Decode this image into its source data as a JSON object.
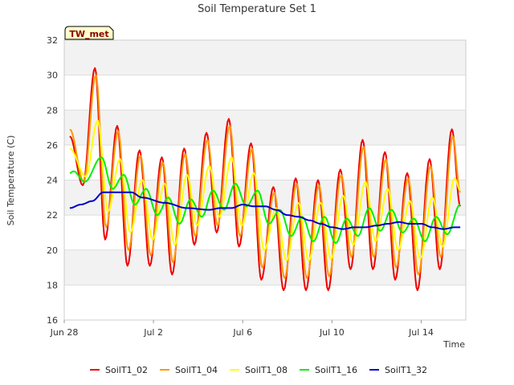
{
  "chart_data": {
    "type": "line",
    "title": "Soil Temperature Set 1",
    "xlabel": "Time",
    "ylabel": "Soil Temperature (C)",
    "badge": "TW_met",
    "x_range": [
      "2016-06-28",
      "2016-07-16"
    ],
    "ylim": [
      16,
      32
    ],
    "y_ticks": [
      16,
      18,
      20,
      22,
      24,
      26,
      28,
      30,
      32
    ],
    "x_ticks": [
      {
        "date": "2016-06-28",
        "label": "Jun 28"
      },
      {
        "date": "2016-07-02",
        "label": "Jul 2"
      },
      {
        "date": "2016-07-06",
        "label": "Jul 6"
      },
      {
        "date": "2016-07-10",
        "label": "Jul 10"
      },
      {
        "date": "2016-07-14",
        "label": "Jul 14"
      }
    ],
    "grid": true,
    "legend_position": "bottom",
    "series": [
      {
        "name": "SoilT1_02",
        "color": "#ee0000",
        "points": [
          [
            "2016-06-28T06:00",
            26.5
          ],
          [
            "2016-06-28T20:00",
            23.7
          ],
          [
            "2016-06-29T09:00",
            30.4
          ],
          [
            "2016-06-29T20:00",
            20.6
          ],
          [
            "2016-06-30T09:00",
            27.1
          ],
          [
            "2016-06-30T20:00",
            19.1
          ],
          [
            "2016-07-01T09:00",
            25.7
          ],
          [
            "2016-07-01T20:00",
            19.1
          ],
          [
            "2016-07-02T09:00",
            25.3
          ],
          [
            "2016-07-02T20:00",
            18.6
          ],
          [
            "2016-07-03T09:00",
            25.8
          ],
          [
            "2016-07-03T20:00",
            20.3
          ],
          [
            "2016-07-04T09:00",
            26.7
          ],
          [
            "2016-07-04T20:00",
            21.0
          ],
          [
            "2016-07-05T09:00",
            27.5
          ],
          [
            "2016-07-05T20:00",
            20.2
          ],
          [
            "2016-07-06T09:00",
            26.1
          ],
          [
            "2016-07-06T20:00",
            18.3
          ],
          [
            "2016-07-07T09:00",
            23.6
          ],
          [
            "2016-07-07T20:00",
            17.7
          ],
          [
            "2016-07-08T09:00",
            24.1
          ],
          [
            "2016-07-08T20:00",
            17.7
          ],
          [
            "2016-07-09T09:00",
            24.0
          ],
          [
            "2016-07-09T20:00",
            17.7
          ],
          [
            "2016-07-10T09:00",
            24.6
          ],
          [
            "2016-07-10T20:00",
            18.9
          ],
          [
            "2016-07-11T09:00",
            26.3
          ],
          [
            "2016-07-11T20:00",
            18.9
          ],
          [
            "2016-07-12T09:00",
            25.6
          ],
          [
            "2016-07-12T20:00",
            18.3
          ],
          [
            "2016-07-13T09:00",
            24.4
          ],
          [
            "2016-07-13T20:00",
            17.7
          ],
          [
            "2016-07-14T09:00",
            25.2
          ],
          [
            "2016-07-14T20:00",
            18.9
          ],
          [
            "2016-07-15T09:00",
            26.9
          ],
          [
            "2016-07-15T18:00",
            22.5
          ]
        ]
      },
      {
        "name": "SoilT1_04",
        "color": "#ff9900",
        "points": [
          [
            "2016-06-28T06:00",
            26.9
          ],
          [
            "2016-06-28T21:00",
            23.9
          ],
          [
            "2016-06-29T10:00",
            30.0
          ],
          [
            "2016-06-29T21:00",
            21.3
          ],
          [
            "2016-06-30T10:00",
            26.8
          ],
          [
            "2016-06-30T21:00",
            20.0
          ],
          [
            "2016-07-01T10:00",
            25.4
          ],
          [
            "2016-07-01T21:00",
            19.7
          ],
          [
            "2016-07-02T10:00",
            25.0
          ],
          [
            "2016-07-02T21:00",
            19.3
          ],
          [
            "2016-07-03T10:00",
            25.5
          ],
          [
            "2016-07-03T21:00",
            20.8
          ],
          [
            "2016-07-04T10:00",
            26.3
          ],
          [
            "2016-07-04T21:00",
            21.4
          ],
          [
            "2016-07-05T10:00",
            27.1
          ],
          [
            "2016-07-05T21:00",
            20.8
          ],
          [
            "2016-07-06T10:00",
            25.8
          ],
          [
            "2016-07-06T21:00",
            19.0
          ],
          [
            "2016-07-07T10:00",
            23.3
          ],
          [
            "2016-07-07T21:00",
            18.4
          ],
          [
            "2016-07-08T10:00",
            23.8
          ],
          [
            "2016-07-08T21:00",
            18.4
          ],
          [
            "2016-07-09T10:00",
            23.7
          ],
          [
            "2016-07-09T21:00",
            18.5
          ],
          [
            "2016-07-10T10:00",
            24.3
          ],
          [
            "2016-07-10T21:00",
            19.6
          ],
          [
            "2016-07-11T10:00",
            25.9
          ],
          [
            "2016-07-11T21:00",
            19.6
          ],
          [
            "2016-07-12T10:00",
            25.2
          ],
          [
            "2016-07-12T21:00",
            19.0
          ],
          [
            "2016-07-13T10:00",
            24.1
          ],
          [
            "2016-07-13T21:00",
            18.6
          ],
          [
            "2016-07-14T10:00",
            24.8
          ],
          [
            "2016-07-14T21:00",
            19.6
          ],
          [
            "2016-07-15T10:00",
            26.5
          ],
          [
            "2016-07-15T18:00",
            23.3
          ]
        ]
      },
      {
        "name": "SoilT1_08",
        "color": "#ffff00",
        "points": [
          [
            "2016-06-28T06:00",
            25.8
          ],
          [
            "2016-06-28T23:00",
            24.2
          ],
          [
            "2016-06-29T12:00",
            27.4
          ],
          [
            "2016-06-29T23:00",
            22.2
          ],
          [
            "2016-06-30T12:00",
            25.2
          ],
          [
            "2016-06-30T23:00",
            21.0
          ],
          [
            "2016-07-01T12:00",
            24.0
          ],
          [
            "2016-07-01T23:00",
            20.6
          ],
          [
            "2016-07-02T12:00",
            23.8
          ],
          [
            "2016-07-02T23:00",
            20.3
          ],
          [
            "2016-07-03T12:00",
            24.3
          ],
          [
            "2016-07-03T23:00",
            21.4
          ],
          [
            "2016-07-04T12:00",
            24.8
          ],
          [
            "2016-07-04T23:00",
            21.9
          ],
          [
            "2016-07-05T12:00",
            25.3
          ],
          [
            "2016-07-05T23:00",
            21.4
          ],
          [
            "2016-07-06T12:00",
            24.4
          ],
          [
            "2016-07-06T23:00",
            20.0
          ],
          [
            "2016-07-07T12:00",
            22.4
          ],
          [
            "2016-07-07T23:00",
            19.4
          ],
          [
            "2016-07-08T12:00",
            22.7
          ],
          [
            "2016-07-08T23:00",
            19.4
          ],
          [
            "2016-07-09T12:00",
            22.7
          ],
          [
            "2016-07-09T23:00",
            19.5
          ],
          [
            "2016-07-10T12:00",
            23.1
          ],
          [
            "2016-07-10T23:00",
            20.3
          ],
          [
            "2016-07-11T12:00",
            23.9
          ],
          [
            "2016-07-11T23:00",
            20.5
          ],
          [
            "2016-07-12T12:00",
            23.5
          ],
          [
            "2016-07-12T23:00",
            20.0
          ],
          [
            "2016-07-13T12:00",
            22.8
          ],
          [
            "2016-07-13T23:00",
            19.5
          ],
          [
            "2016-07-14T12:00",
            23.0
          ],
          [
            "2016-07-14T23:00",
            20.2
          ],
          [
            "2016-07-15T12:00",
            24.1
          ],
          [
            "2016-07-15T18:00",
            23.4
          ]
        ]
      },
      {
        "name": "SoilT1_16",
        "color": "#00ee00",
        "points": [
          [
            "2016-06-28T06:00",
            24.4
          ],
          [
            "2016-06-28T10:00",
            24.5
          ],
          [
            "2016-06-28T22:00",
            23.9
          ],
          [
            "2016-06-29T16:00",
            25.3
          ],
          [
            "2016-06-30T04:00",
            23.5
          ],
          [
            "2016-06-30T16:00",
            24.3
          ],
          [
            "2016-07-01T04:00",
            22.6
          ],
          [
            "2016-07-01T16:00",
            23.5
          ],
          [
            "2016-07-02T04:00",
            22.0
          ],
          [
            "2016-07-02T16:00",
            23.0
          ],
          [
            "2016-07-03T04:00",
            21.5
          ],
          [
            "2016-07-03T16:00",
            22.9
          ],
          [
            "2016-07-04T04:00",
            21.9
          ],
          [
            "2016-07-04T16:00",
            23.4
          ],
          [
            "2016-07-05T04:00",
            22.3
          ],
          [
            "2016-07-05T16:00",
            23.8
          ],
          [
            "2016-07-06T04:00",
            22.5
          ],
          [
            "2016-07-06T16:00",
            23.4
          ],
          [
            "2016-07-07T04:00",
            21.5
          ],
          [
            "2016-07-07T16:00",
            22.3
          ],
          [
            "2016-07-08T04:00",
            20.8
          ],
          [
            "2016-07-08T16:00",
            21.9
          ],
          [
            "2016-07-09T04:00",
            20.5
          ],
          [
            "2016-07-09T16:00",
            21.9
          ],
          [
            "2016-07-10T04:00",
            20.4
          ],
          [
            "2016-07-10T16:00",
            21.8
          ],
          [
            "2016-07-11T04:00",
            20.8
          ],
          [
            "2016-07-11T16:00",
            22.4
          ],
          [
            "2016-07-12T04:00",
            21.1
          ],
          [
            "2016-07-12T16:00",
            22.3
          ],
          [
            "2016-07-13T04:00",
            21.0
          ],
          [
            "2016-07-13T16:00",
            21.8
          ],
          [
            "2016-07-14T04:00",
            20.5
          ],
          [
            "2016-07-14T16:00",
            21.9
          ],
          [
            "2016-07-15T04:00",
            20.9
          ],
          [
            "2016-07-15T18:00",
            22.6
          ]
        ]
      },
      {
        "name": "SoilT1_32",
        "color": "#0000cc",
        "points": [
          [
            "2016-06-28T06:00",
            22.4
          ],
          [
            "2016-06-28T18:00",
            22.6
          ],
          [
            "2016-06-29T06:00",
            22.8
          ],
          [
            "2016-06-29T18:00",
            23.3
          ],
          [
            "2016-06-30T12:00",
            23.3
          ],
          [
            "2016-07-01T00:00",
            23.3
          ],
          [
            "2016-07-01T12:00",
            23.0
          ],
          [
            "2016-07-02T12:00",
            22.7
          ],
          [
            "2016-07-03T12:00",
            22.4
          ],
          [
            "2016-07-04T12:00",
            22.3
          ],
          [
            "2016-07-05T00:00",
            22.4
          ],
          [
            "2016-07-05T12:00",
            22.4
          ],
          [
            "2016-07-06T00:00",
            22.6
          ],
          [
            "2016-07-06T12:00",
            22.5
          ],
          [
            "2016-07-07T00:00",
            22.5
          ],
          [
            "2016-07-07T12:00",
            22.3
          ],
          [
            "2016-07-08T00:00",
            22.0
          ],
          [
            "2016-07-08T12:00",
            21.9
          ],
          [
            "2016-07-09T00:00",
            21.7
          ],
          [
            "2016-07-09T12:00",
            21.5
          ],
          [
            "2016-07-10T00:00",
            21.3
          ],
          [
            "2016-07-10T12:00",
            21.2
          ],
          [
            "2016-07-11T00:00",
            21.3
          ],
          [
            "2016-07-11T12:00",
            21.3
          ],
          [
            "2016-07-12T00:00",
            21.4
          ],
          [
            "2016-07-12T12:00",
            21.5
          ],
          [
            "2016-07-13T00:00",
            21.6
          ],
          [
            "2016-07-13T12:00",
            21.5
          ],
          [
            "2016-07-14T00:00",
            21.5
          ],
          [
            "2016-07-14T12:00",
            21.3
          ],
          [
            "2016-07-15T00:00",
            21.2
          ],
          [
            "2016-07-15T12:00",
            21.3
          ],
          [
            "2016-07-15T18:00",
            21.3
          ]
        ]
      }
    ]
  }
}
